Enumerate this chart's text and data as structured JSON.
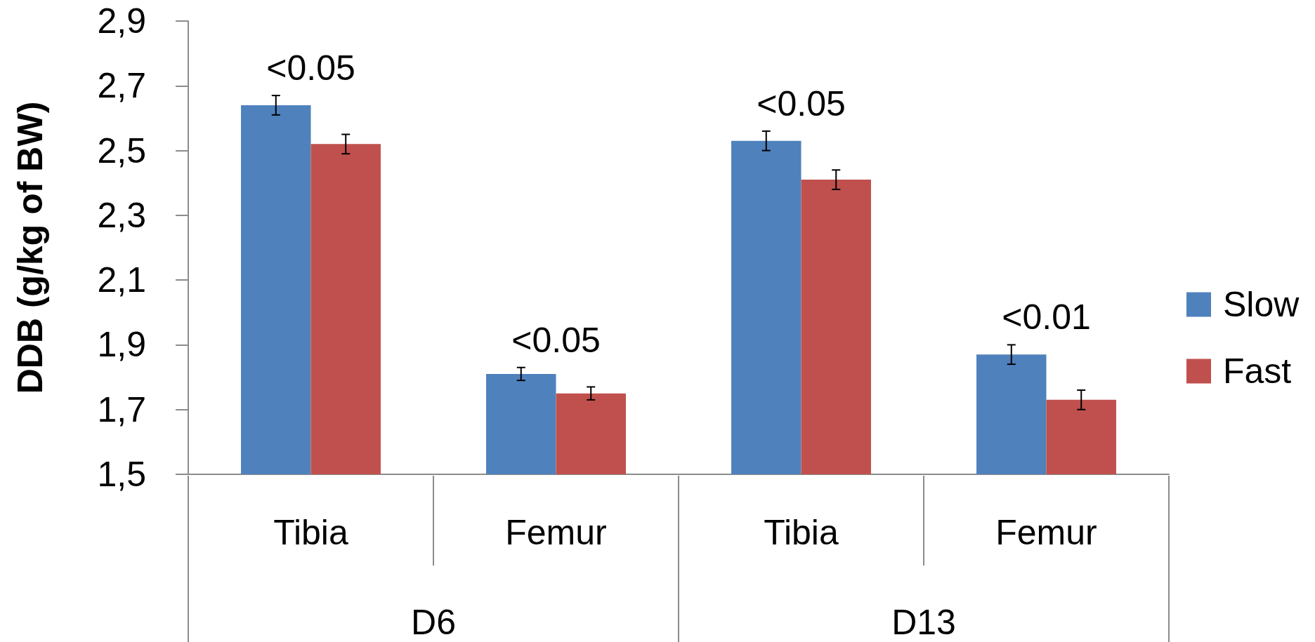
{
  "chart_data": {
    "type": "bar",
    "ylabel": "DDB (g/kg of BW)",
    "categories": [
      "Tibia",
      "Femur",
      "Tibia",
      "Femur"
    ],
    "series": [
      {
        "name": "Slow",
        "color": "#4f81bd",
        "values": [
          2.64,
          1.81,
          2.53,
          1.87
        ],
        "errors": [
          0.03,
          0.02,
          0.03,
          0.03
        ]
      },
      {
        "name": "Fast",
        "color": "#c0504d",
        "values": [
          2.52,
          1.75,
          2.41,
          1.73
        ],
        "errors": [
          0.03,
          0.02,
          0.03,
          0.03
        ]
      }
    ],
    "ylim": [
      1.5,
      2.9
    ],
    "yticks": [
      {
        "value": 1.5,
        "label": "1,5"
      },
      {
        "value": 1.7,
        "label": "1,7"
      },
      {
        "value": 1.9,
        "label": "1,9"
      },
      {
        "value": 2.1,
        "label": "2,1"
      },
      {
        "value": 2.3,
        "label": "2,3"
      },
      {
        "value": 2.5,
        "label": "2,5"
      },
      {
        "value": 2.7,
        "label": "2,7"
      },
      {
        "value": 2.9,
        "label": "2,9"
      }
    ],
    "annotations": [
      "<0.05",
      "<0.05",
      "<0.05",
      "<0.01",
      "D6",
      "D13"
    ],
    "legend": "right",
    "grid": false
  }
}
